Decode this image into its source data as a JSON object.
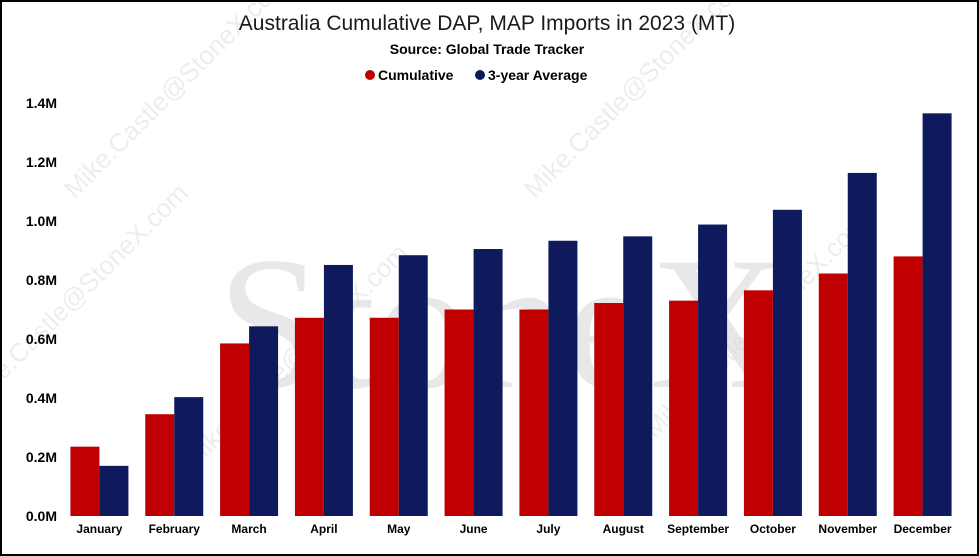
{
  "chart_data": {
    "type": "bar",
    "title": "Australia Cumulative DAP, MAP Imports in 2023 (MT)",
    "subtitle": "Source: Global Trade Tracker",
    "categories": [
      "January",
      "February",
      "March",
      "April",
      "May",
      "June",
      "July",
      "August",
      "September",
      "October",
      "November",
      "December"
    ],
    "series": [
      {
        "name": "Cumulative",
        "color": "#c00000",
        "values": [
          235000,
          345000,
          585000,
          672000,
          672000,
          700000,
          700000,
          722000,
          730000,
          765000,
          822000,
          880000
        ]
      },
      {
        "name": "3-year Average",
        "color": "#0f1a5c",
        "values": [
          170000,
          403000,
          643000,
          851000,
          884000,
          905000,
          933000,
          948000,
          988000,
          1038000,
          1163000,
          1365000
        ]
      }
    ],
    "ylim": [
      0,
      1400000
    ],
    "yticks": [
      0,
      200000,
      400000,
      600000,
      800000,
      1000000,
      1200000,
      1400000
    ],
    "ytick_labels": [
      "0.0M",
      "0.2M",
      "0.4M",
      "0.6M",
      "0.8M",
      "1.0M",
      "1.2M",
      "1.4M"
    ],
    "xlabel": "",
    "ylabel": "",
    "grid": false,
    "legend_position": "top-center"
  },
  "watermark": {
    "logo_text": "StoneX",
    "diagonal_text": "Mike.Castle@StoneX.com",
    "color": "#d9d9d9"
  }
}
